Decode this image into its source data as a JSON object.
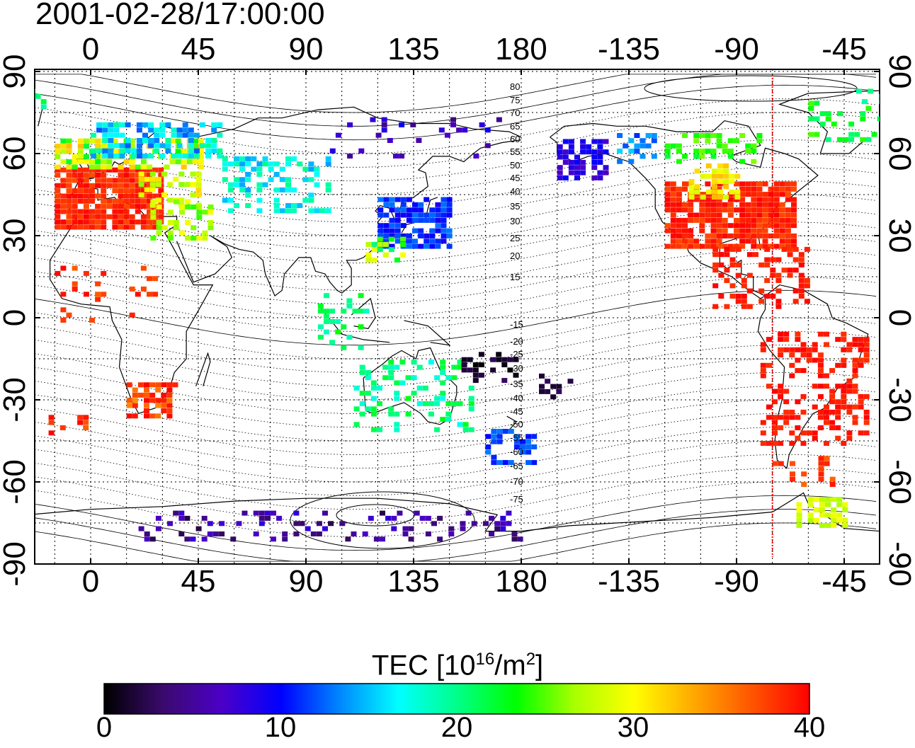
{
  "title": "2001-02-28/17:00:00",
  "map": {
    "top_lon_ticks": [
      "0",
      "45",
      "90",
      "135",
      "180",
      "-135",
      "-90",
      "-45"
    ],
    "bottom_lon_ticks": [
      "0",
      "45",
      "90",
      "135",
      "180",
      "-135",
      "-90",
      "-45"
    ],
    "left_lat_ticks": [
      "90",
      "60",
      "30",
      "0",
      "-30",
      "-60",
      "-90"
    ],
    "right_lat_ticks": [
      "90",
      "60",
      "30",
      "0",
      "-30",
      "-60",
      "-90"
    ],
    "contour_labels": [
      "80",
      "75",
      "70",
      "65",
      "60",
      "55",
      "50",
      "45",
      "40",
      "35",
      "30",
      "25",
      "20",
      "15",
      "-15",
      "-20",
      "-25",
      "-30",
      "-35",
      "-40",
      "-45",
      "-50",
      "-55",
      "-60",
      "-65",
      "-70",
      "-75"
    ],
    "marker_longitude": -75,
    "marker_color": "#ff0000"
  },
  "colorbar": {
    "title_main": "TEC  [10",
    "title_sup1": "16",
    "title_mid": "/m",
    "title_sup2": "2",
    "title_end": "]",
    "ticks": [
      "0",
      "10",
      "20",
      "30",
      "40"
    ],
    "range": [
      0,
      40
    ],
    "colors": [
      "#000000",
      "#3b0a6e",
      "#4b00c8",
      "#0000ff",
      "#0088ff",
      "#00ffff",
      "#00ff88",
      "#00ff00",
      "#aaff00",
      "#ffff00",
      "#ffaa00",
      "#ff5500",
      "#ff0000"
    ]
  }
}
